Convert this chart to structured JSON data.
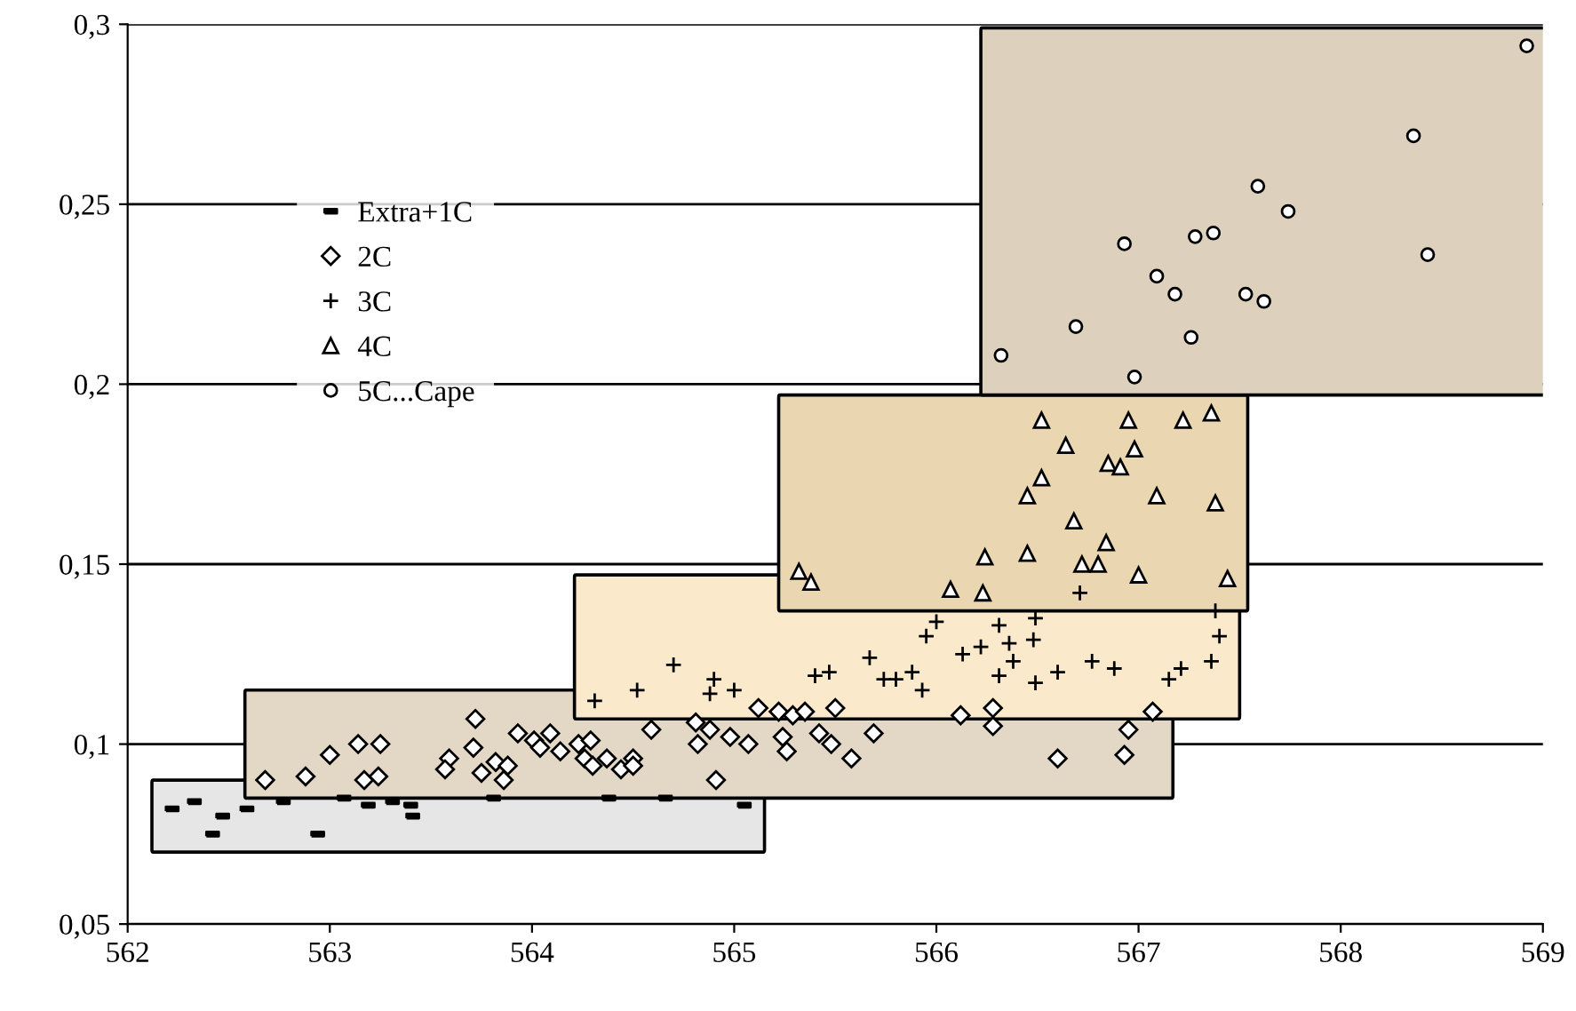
{
  "chart_data": {
    "type": "scatter",
    "xlim": [
      562,
      569
    ],
    "ylim": [
      0.05,
      0.3
    ],
    "xticks": [
      562,
      563,
      564,
      565,
      566,
      567,
      568,
      569
    ],
    "yticks": [
      {
        "value": 0.05,
        "label": "0,05"
      },
      {
        "value": 0.1,
        "label": "0,1"
      },
      {
        "value": 0.15,
        "label": "0,15"
      },
      {
        "value": 0.2,
        "label": "0,2"
      },
      {
        "value": 0.25,
        "label": "0,25"
      },
      {
        "value": 0.3,
        "label": "0,3"
      }
    ],
    "grid": "y",
    "legend": "top left",
    "series": [
      {
        "name": "Extra+1C",
        "color": "#000000",
        "marker": "square",
        "x": [
          562.22,
          562.33,
          562.47,
          562.59,
          562.42,
          562.77,
          562.94,
          563.07,
          563.19,
          563.31,
          563.4,
          563.41,
          563.81,
          564.38,
          564.66,
          565.05
        ],
        "values": [
          0.082,
          0.084,
          0.08,
          0.082,
          0.075,
          0.084,
          0.075,
          0.085,
          0.083,
          0.084,
          0.083,
          0.08,
          0.085,
          0.085,
          0.085,
          0.083
        ]
      },
      {
        "name": "2C",
        "color": "#000000",
        "marker": "diamond",
        "x": [
          562.68,
          562.88,
          563.0,
          563.14,
          563.25,
          563.17,
          563.24,
          563.72,
          563.71,
          563.59,
          563.57,
          563.75,
          563.82,
          563.88,
          563.86,
          563.93,
          564.01,
          564.04,
          564.09,
          564.14,
          564.23,
          564.29,
          564.26,
          564.3,
          564.37,
          564.44,
          564.5,
          564.5,
          564.59,
          564.81,
          564.88,
          564.82,
          564.91,
          564.98,
          565.07,
          565.12,
          565.22,
          565.29,
          565.35,
          565.24,
          565.26,
          565.42,
          565.48,
          565.5,
          566.12,
          566.28,
          566.28,
          567.07,
          566.95,
          566.93,
          566.6,
          565.69,
          565.58
        ],
        "values": [
          0.09,
          0.091,
          0.097,
          0.1,
          0.1,
          0.09,
          0.091,
          0.107,
          0.099,
          0.096,
          0.093,
          0.092,
          0.095,
          0.094,
          0.09,
          0.103,
          0.101,
          0.099,
          0.103,
          0.098,
          0.1,
          0.101,
          0.096,
          0.094,
          0.096,
          0.093,
          0.096,
          0.094,
          0.104,
          0.106,
          0.104,
          0.1,
          0.09,
          0.102,
          0.1,
          0.11,
          0.109,
          0.108,
          0.109,
          0.102,
          0.098,
          0.103,
          0.1,
          0.11,
          0.108,
          0.11,
          0.105,
          0.109,
          0.104,
          0.097,
          0.096,
          0.103,
          0.096
        ]
      },
      {
        "name": "3C",
        "color": "#000000",
        "marker": "cross",
        "x": [
          564.31,
          564.52,
          564.7,
          564.9,
          564.88,
          565.0,
          565.47,
          565.4,
          565.67,
          565.74,
          565.8,
          565.88,
          565.93,
          565.95,
          566.0,
          566.13,
          566.22,
          566.31,
          566.36,
          566.38,
          566.31,
          566.48,
          566.49,
          566.49,
          566.6,
          566.71,
          566.77,
          566.88,
          567.21,
          567.36,
          567.4,
          567.38,
          567.15
        ],
        "values": [
          0.112,
          0.115,
          0.122,
          0.118,
          0.114,
          0.115,
          0.12,
          0.119,
          0.124,
          0.118,
          0.118,
          0.12,
          0.115,
          0.13,
          0.134,
          0.125,
          0.127,
          0.133,
          0.128,
          0.123,
          0.119,
          0.129,
          0.135,
          0.117,
          0.12,
          0.142,
          0.123,
          0.121,
          0.121,
          0.123,
          0.13,
          0.137,
          0.118
        ]
      },
      {
        "name": "4C",
        "color": "#000000",
        "marker": "triangle",
        "x": [
          565.32,
          565.38,
          566.07,
          566.23,
          566.24,
          566.45,
          566.52,
          566.64,
          566.52,
          566.45,
          566.68,
          566.84,
          566.72,
          566.8,
          566.85,
          566.91,
          566.95,
          566.98,
          567.0,
          567.09,
          567.22,
          567.36,
          567.38,
          567.44
        ],
        "values": [
          0.148,
          0.145,
          0.143,
          0.142,
          0.152,
          0.153,
          0.19,
          0.183,
          0.174,
          0.169,
          0.162,
          0.156,
          0.15,
          0.15,
          0.178,
          0.177,
          0.19,
          0.182,
          0.147,
          0.169,
          0.19,
          0.192,
          0.167,
          0.146
        ]
      },
      {
        "name": "5C...Cape",
        "color": "#000000",
        "marker": "circle",
        "x": [
          568.36,
          567.59,
          567.74,
          566.93,
          567.28,
          567.37,
          568.43,
          567.09,
          567.18,
          567.53,
          567.62,
          566.69,
          567.26,
          566.32,
          566.98,
          568.92
        ],
        "values": [
          0.269,
          0.255,
          0.248,
          0.239,
          0.241,
          0.242,
          0.236,
          0.23,
          0.225,
          0.225,
          0.223,
          0.216,
          0.213,
          0.208,
          0.202,
          0.294
        ]
      }
    ]
  }
}
